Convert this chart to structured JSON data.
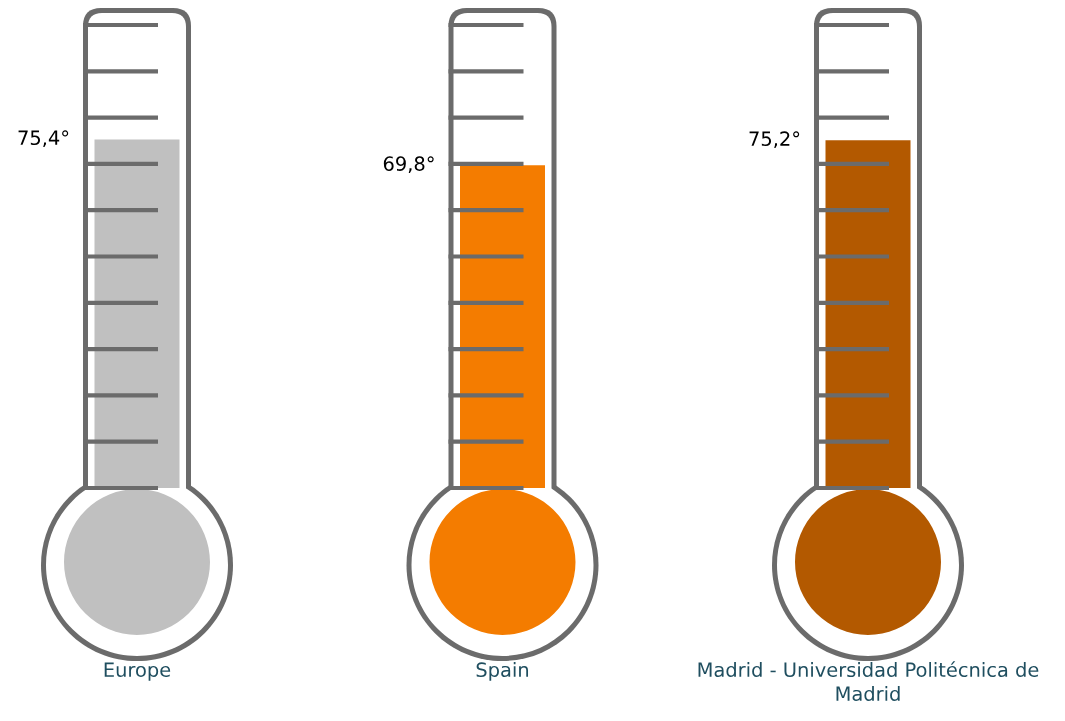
{
  "chart_data": {
    "type": "bar",
    "categories": [
      "Europe",
      "Spain",
      "Madrid - Universidad Politécnica de Madrid"
    ],
    "values": [
      75.4,
      69.8,
      75.2
    ],
    "colors": [
      "#c0c0c0",
      "#f47c00",
      "#b35900"
    ],
    "value_labels": [
      "75,4°",
      "69,8°",
      "75,2°"
    ]
  }
}
